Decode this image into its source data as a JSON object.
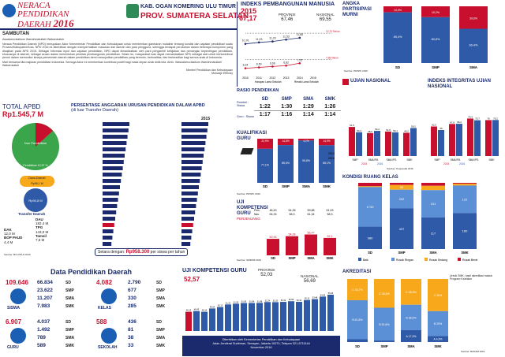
{
  "header": {
    "title_line1": "NERACA",
    "title_line2": "PENDIDIKAN",
    "title_line3": "DAERAH",
    "year": "2016",
    "kab": "KAB. OGAN KOMERING ULU TIMUR",
    "prov": "PROV. SUMATERA SELATAN"
  },
  "sambutan": {
    "heading": "Sambutan",
    "greeting": "Assalamu'alaikum Warrahmatullahi Wabarokatuh",
    "body1": "Neraca Pendidikan Daerah (NPD) merupakan Aktor Kementerian Pendidikan dan Kebudayaan untuk memberikan gambaran mutakhir tentang kondisi dan capaian pendidikan suatu Provinsi/Kabupaten/Kota. NPD 2016 ini diterbitkan dengan memperhatikan masukan dari daerah dan para pengguna, sehingga terdapat perubahan dalam beberapa komponen yang disajikan pada NPD 2015. Sebagai informasi input dan capaian pendidikan, NPD dapat dimanfaatkan oleh para pengambil kebijakan dan pemangku kepentingan pendidikan, khususnya di daerah, sebagai acuan dalam menentukan prioritas pembangunan pendidikan. Selain itu, masyarakat luas dapat memanfaatkan NPD sebagai alat untuk berkontribusi penuh dalam memonitor kinerja pemerintah daerah dalam pendidikan demi mewujudkan pendidikan yang bermutu, berkualitas, dan berkeadilan bagi semua anak di Indonesia.",
    "body2": "Mari bersama kita majukan pendidikan Indonesia. Semoga Aktor ini memberikan kontribusi positif bagi masa depan anak didik kita. Amin. Wassalamu'alaikum Warrahmatullahi Wabarokatuh",
    "signature1": "Menteri Pendidikan dan Kebudayaan",
    "signature2": "Muhadjir Effendy"
  },
  "apbd": {
    "title": "TOTAL APBD",
    "value": "Rp1.545,7 M",
    "pie_label_pendidikan": "Pendidikan 12,97 %",
    "pie_label_nonpend": "Non Pendidikan",
    "dana_daerah_label": "Dana Daerah",
    "dana_daerah_value": "Rp96,1 M",
    "transfer_label": "Transfer Daerah",
    "transfer_value": "Rp93,8 M",
    "dau_label": "DAU",
    "dau_value": "182,4 M",
    "tpg_label": "TPG",
    "tpg_value": "143,0 M",
    "tamsil_label": "Tamsil",
    "tamsil_value": "7,6 M",
    "dak_label": "DAK",
    "dak_value": "12,0 M",
    "bop_label": "BOP PAUD",
    "bop_value": "4,4 M",
    "source": "Sumber: Biro PKLN 2016"
  },
  "persentase": {
    "title": "PERSENTASE ANGGARAN URUSAN PENDIDIKAN DALAM APBD",
    "subtitle": "(di luar Transfer Daerah)",
    "year_right": "2015",
    "footer_label": "Setara dengan:",
    "footer_value": "Rp958.300",
    "footer_suffix": "per siswa per tahun"
  },
  "ipm": {
    "title": "INDEKS PEMBANGUNAN MANUSIA",
    "year": "2015",
    "kab_value": "67,17",
    "prov_label": "PROVINSI",
    "prov_value": "67,46",
    "nas_label": "NASIONAL",
    "nas_value": "69,55",
    "legend_hls": "Harapan Lama Sekolah",
    "legend_rls": "Rerata Lama Sekolah",
    "hls_nat": "12,70 Tahun",
    "rls_nat": "7,95 Tahun"
  },
  "apm": {
    "title1": "ANGKA",
    "title2": "PARTISIPASI",
    "title3": "MURNI",
    "source": "Sumber: PDSPK 2016"
  },
  "rasio": {
    "title": "RASIO PENDIDIKAN",
    "rombel_label": "Rombel : Siswa",
    "guru_label": "Guru : Siswa",
    "levels": [
      "SD",
      "SMP",
      "SMA",
      "SMK"
    ],
    "rombel": [
      "1:22",
      "1:30",
      "1:29",
      "1:26"
    ],
    "guru": [
      "1:17",
      "1:16",
      "1:14",
      "1:14"
    ]
  },
  "kualifikasi": {
    "title": "KUALIFIKASI",
    "title2": "GURU",
    "source": "Sumber: PDSPK 2016",
    "legend_2014": "2014",
    "legend_2016": "2016"
  },
  "ukg": {
    "title": "UJI",
    "title2": "KOMPETENSI",
    "title3": "GURU",
    "sub": "PERJENJANG",
    "pres_label": "Pres.",
    "nas_label": "Nas.",
    "source": "Sumber: SIMPKB 2015"
  },
  "un": {
    "title": "UJIAN NASIONAL",
    "iiun_title": "INDEKS INTEGRITAS UJIAN NASIONAL",
    "source": "Sumber: Puspendik 2016",
    "legend_2015": "2015",
    "legend_2016": "2016"
  },
  "kondisi": {
    "title": "KONDISI RUANG KELAS",
    "legend": [
      "Baik",
      "Rusak Ringan",
      "Rusak Sedang",
      "Rusak Berat"
    ]
  },
  "data_pend": {
    "title": "Data Pendidikan Daerah",
    "siswa_total": "109.646",
    "siswa_label": "SISWA",
    "guru_total": "6.907",
    "guru_label": "GURU",
    "kelas_total": "4.082",
    "kelas_label": "KELAS",
    "sekolah_total": "588",
    "sekolah_label": "SEKOLAH"
  },
  "ukg_kab": {
    "title": "UJI KOMPETENSI GURU",
    "kab_value": "52,57",
    "prov_label": "PROVINSI",
    "prov_value": "52,03",
    "nas_label": "NASIONAL",
    "nas_value": "56,69"
  },
  "akreditasi": {
    "title": "AKREDITASI",
    "note": "Untuk SMK, hasil akreditasi masuk Program Keahlian",
    "source": "Sumber: BANSM 2016"
  },
  "footer": {
    "line1": "Diterbitkan oleh Kementerian Pendidikan dan Kebudayaan",
    "line2": "Jalan Jenderal Sudirman, Senayan, Jakarta 10270, Telepon 021-5711144",
    "line3": "November 2016"
  },
  "colors": {
    "red": "#c8102e",
    "navy": "#1a2a6c",
    "blue": "#2e5aa8",
    "green": "#3aa54b",
    "orange": "#f7a81b"
  },
  "chart_data": [
    {
      "type": "line",
      "name": "ipm",
      "x": [
        "2010",
        "2011",
        "2012",
        "2013",
        "2014",
        "2015"
      ],
      "series": [
        {
          "name": "Harapan Lama Sekolah",
          "values": [
            10.76,
            11.03,
            11.2,
            11.53,
            11.86,
            null
          ]
        },
        {
          "name": "Rerata Lama Sekolah",
          "values": [
            6.34,
            6.5,
            6.66,
            6.82,
            7.25,
            null
          ]
        }
      ]
    },
    {
      "type": "bar",
      "name": "apm",
      "categories": [
        "SD",
        "SMP",
        "SMA"
      ],
      "series": [
        {
          "name": "APM",
          "values": [
            89.4,
            80.8,
            60.4
          ]
        },
        {
          "name": "Tidak",
          "values": [
            10.6,
            19.2,
            39.6
          ]
        }
      ]
    },
    {
      "type": "bar",
      "name": "kualifikasi",
      "categories": [
        "SD",
        "SMP",
        "SMA",
        "SMK"
      ],
      "series": [
        {
          "name": "S1/D4",
          "values": [
            77.1,
            85.5,
            95.8,
            85.1
          ]
        },
        {
          "name": "Belum",
          "values": [
            22.9,
            14.5,
            4.2,
            14.9
          ]
        }
      ]
    },
    {
      "type": "bar",
      "name": "ukg_jenjang",
      "categories": [
        "SD",
        "SMP",
        "SMA",
        "SMK"
      ],
      "prov": [
        46.43,
        54.35,
        59.88,
        51.03
      ],
      "nas": [
        54.33,
        58.3,
        61.34,
        58.3
      ],
      "values": [
        50.93,
        54.28,
        56.47,
        52.1
      ]
    },
    {
      "type": "bar",
      "name": "un",
      "categories": [
        "SMP",
        "SMA IPA",
        "SMA IPS",
        "SMK"
      ],
      "series": [
        {
          "name": "2015",
          "values": [
            61.5,
            48.6,
            51.8,
            49.2
          ]
        },
        {
          "name": "2016",
          "values": [
            50.3,
            53.2,
            50.1,
            59.2
          ]
        }
      ]
    },
    {
      "type": "bar",
      "name": "iiun",
      "categories": [
        "SMP",
        "SMA IPA",
        "SMA IPS",
        "SMK"
      ],
      "series": [
        {
          "name": "2015",
          "values": [
            62.5,
            67.8,
            79.3,
            76.0
          ]
        },
        {
          "name": "2016",
          "values": [
            55.0,
            68.2,
            75.7,
            76.2
          ]
        }
      ]
    },
    {
      "type": "bar",
      "name": "kondisi_ruang_kelas",
      "categories": [
        "SD",
        "SMP",
        "SMA",
        "SMK"
      ],
      "series": [
        {
          "name": "Baik",
          "values": [
            980,
            437,
            117,
            160
          ]
        },
        {
          "name": "Rusak Ringan",
          "values": [
            1733,
            202,
            101,
            122
          ]
        },
        {
          "name": "Rusak Sedang",
          "values": [
            37,
            52,
            16,
            8
          ]
        },
        {
          "name": "Rusak Berat",
          "values": [
            148,
            22,
            11,
            4
          ]
        }
      ]
    },
    {
      "type": "bar",
      "name": "ukg_kecamatan",
      "values": [
        48.13,
        48.43,
        48.14,
        49.54,
        50.12,
        51.22,
        51.55,
        51.83,
        51.84,
        51.88,
        52.24,
        52.2,
        52.31,
        52.59,
        52.32,
        53.11,
        53.48,
        54.55,
        55.35
      ],
      "highlight_index": [
        0
      ]
    },
    {
      "type": "bar",
      "name": "akreditasi",
      "categories": [
        "SD",
        "SMP",
        "SMA",
        "SMK"
      ],
      "series": [
        {
          "name": "A",
          "values": [
            4.4,
            2.4,
            17.9,
            4.9
          ]
        },
        {
          "name": "B",
          "values": [
            61.8,
            51.8,
            38.3,
            20.0
          ]
        },
        {
          "name": "C",
          "values": [
            33.7,
            45.5,
            38.9,
            26.0
          ]
        }
      ]
    }
  ],
  "counts": {
    "siswa": [
      "66.834",
      "23.622",
      "11.207",
      "7.983"
    ],
    "guru": [
      "4.037",
      "1.492",
      "789",
      "589"
    ],
    "kelas": [
      "2.790",
      "677",
      "330",
      "285"
    ],
    "sekolah": [
      "436",
      "81",
      "38",
      "33"
    ],
    "levels": [
      "SD",
      "SMP",
      "SMA",
      "SMK"
    ]
  }
}
